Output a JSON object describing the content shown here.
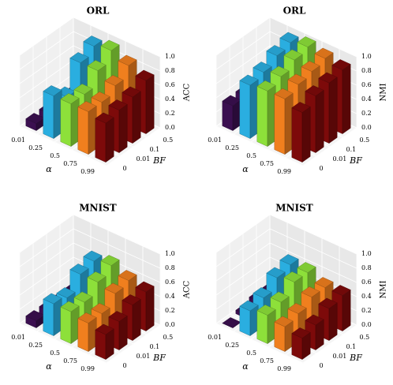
{
  "chart_data": [
    {
      "type": "bar3d",
      "title": "ORL",
      "x_label": "α",
      "y_label": "BF",
      "z_label": "ACC",
      "categories": [
        "0.01",
        "0.25",
        "0.5",
        "0.75",
        "0.99"
      ],
      "y_categories": [
        "0",
        "0.01",
        "0.1",
        "0.5"
      ],
      "colors": [
        "#3b0f50",
        "#2aaee0",
        "#8de03a",
        "#f07f1e",
        "#7d0a0a"
      ],
      "values": [
        [
          0.1,
          0.6,
          0.6,
          0.6,
          0.55
        ],
        [
          0.1,
          0.45,
          0.6,
          0.6,
          0.6
        ],
        [
          0.1,
          0.8,
          0.8,
          0.7,
          0.65
        ],
        [
          0.1,
          0.9,
          0.95,
          0.85,
          0.75
        ]
      ],
      "zlim": [
        0,
        1
      ],
      "zticks": [
        {
          "value": 0,
          "label": "0.0"
        },
        {
          "value": 0.2,
          "label": "0.2"
        },
        {
          "value": 0.4,
          "label": "0.4"
        },
        {
          "value": 0.6,
          "label": "0.6"
        },
        {
          "value": 0.8,
          "label": "0.8"
        },
        {
          "value": 1,
          "label": "1.0"
        }
      ],
      "grid": true
    },
    {
      "type": "bar3d",
      "title": "ORL",
      "x_label": "α",
      "y_label": "BF",
      "z_label": "NMI",
      "categories": [
        "0.01",
        "0.25",
        "0.5",
        "0.75",
        "0.99"
      ],
      "y_categories": [
        "0",
        "0.01",
        "0.1",
        "0.5"
      ],
      "colors": [
        "#3b0f50",
        "#2aaee0",
        "#8de03a",
        "#f07f1e",
        "#7d0a0a"
      ],
      "values": [
        [
          0.35,
          0.75,
          0.78,
          0.78,
          0.7
        ],
        [
          0.35,
          0.8,
          0.85,
          0.85,
          0.8
        ],
        [
          0.35,
          0.9,
          0.95,
          0.9,
          0.85
        ],
        [
          0.35,
          0.95,
          1.0,
          0.95,
          0.9
        ]
      ],
      "zlim": [
        0,
        1
      ],
      "zticks": [
        {
          "value": 0,
          "label": "0.0"
        },
        {
          "value": 0.2,
          "label": "0.2"
        },
        {
          "value": 0.4,
          "label": "0.4"
        },
        {
          "value": 0.6,
          "label": "0.6"
        },
        {
          "value": 0.8,
          "label": "0.8"
        },
        {
          "value": 1,
          "label": "1.0"
        }
      ],
      "grid": true
    },
    {
      "type": "bar3d",
      "title": "MNIST",
      "x_label": "α",
      "y_label": "BF",
      "z_label": "ACC",
      "categories": [
        "0.01",
        "0.25",
        "0.5",
        "0.75",
        "0.99"
      ],
      "y_categories": [
        "0",
        "0.01",
        "0.1",
        "0.5"
      ],
      "colors": [
        "#3b0f50",
        "#2aaee0",
        "#8de03a",
        "#f07f1e",
        "#7d0a0a"
      ],
      "values": [
        [
          0.1,
          0.45,
          0.45,
          0.4,
          0.35
        ],
        [
          0.1,
          0.4,
          0.45,
          0.4,
          0.4
        ],
        [
          0.1,
          0.6,
          0.6,
          0.55,
          0.5
        ],
        [
          0.1,
          0.65,
          0.7,
          0.6,
          0.55
        ]
      ],
      "zlim": [
        0,
        1
      ],
      "zticks": [
        {
          "value": 0,
          "label": "0.0"
        },
        {
          "value": 0.2,
          "label": "0.2"
        },
        {
          "value": 0.4,
          "label": "0.4"
        },
        {
          "value": 0.6,
          "label": "0.6"
        },
        {
          "value": 0.8,
          "label": "0.8"
        },
        {
          "value": 1,
          "label": "1.0"
        }
      ],
      "grid": true
    },
    {
      "type": "bar3d",
      "title": "MNIST",
      "x_label": "α",
      "y_label": "BF",
      "z_label": "NMI",
      "categories": [
        "0.01",
        "0.25",
        "0.5",
        "0.75",
        "0.99"
      ],
      "y_categories": [
        "0",
        "0.01",
        "0.1",
        "0.5"
      ],
      "colors": [
        "#3b0f50",
        "#2aaee0",
        "#8de03a",
        "#f07f1e",
        "#7d0a0a"
      ],
      "values": [
        [
          0.0,
          0.35,
          0.4,
          0.35,
          0.3
        ],
        [
          0.05,
          0.4,
          0.45,
          0.4,
          0.35
        ],
        [
          0.1,
          0.55,
          0.6,
          0.5,
          0.45
        ],
        [
          0.1,
          0.6,
          0.6,
          0.5,
          0.5
        ]
      ],
      "zlim": [
        0,
        1
      ],
      "zticks": [
        {
          "value": 0,
          "label": "0.0"
        },
        {
          "value": 0.2,
          "label": "0.2"
        },
        {
          "value": 0.4,
          "label": "0.4"
        },
        {
          "value": 0.6,
          "label": "0.6"
        },
        {
          "value": 0.8,
          "label": "0.8"
        },
        {
          "value": 1,
          "label": "1.0"
        }
      ],
      "grid": true
    }
  ]
}
